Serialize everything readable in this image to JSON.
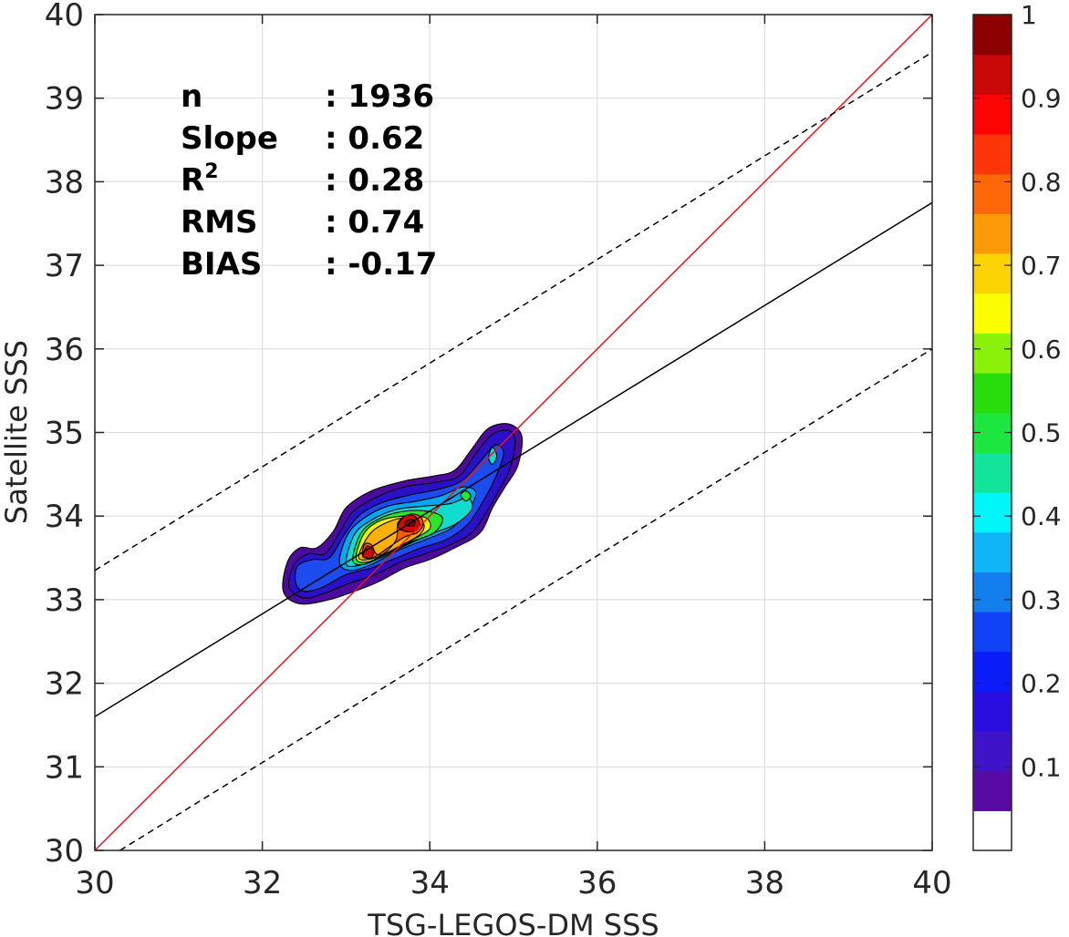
{
  "chart_data": {
    "type": "heatmap",
    "subtype": "density contour scatter",
    "xlabel": "TSG-LEGOS-DM SSS",
    "ylabel": "Satellite SSS",
    "xlim": [
      30,
      40
    ],
    "ylim": [
      30,
      40
    ],
    "xticks": [
      30,
      32,
      34,
      36,
      38,
      40
    ],
    "yticks": [
      30,
      31,
      32,
      33,
      34,
      35,
      36,
      37,
      38,
      39,
      40
    ],
    "grid": true,
    "stats": [
      {
        "label": "n",
        "sep": ":",
        "value": "1936"
      },
      {
        "label": "Slope",
        "sep": ":",
        "value": "0.62"
      },
      {
        "label": "R",
        "sup": "2",
        "sep": ":",
        "value": "0.28"
      },
      {
        "label": "RMS",
        "sep": ":",
        "value": "0.74"
      },
      {
        "label": "BIAS",
        "sep": ":",
        "value": "-0.17"
      }
    ],
    "lines": [
      {
        "role": "identity (1:1)",
        "color": "#e8141c",
        "style": "solid",
        "points": [
          [
            30,
            30
          ],
          [
            40,
            40
          ]
        ]
      },
      {
        "role": "regression fit",
        "color": "#000000",
        "style": "solid",
        "points": [
          [
            30,
            31.6
          ],
          [
            40,
            37.75
          ]
        ]
      },
      {
        "role": "upper envelope",
        "color": "#000000",
        "style": "dashed",
        "points": [
          [
            30,
            33.35
          ],
          [
            40,
            39.55
          ]
        ]
      },
      {
        "role": "lower envelope",
        "color": "#000000",
        "style": "dashed",
        "points": [
          [
            30.3,
            30
          ],
          [
            40,
            36.0
          ]
        ]
      }
    ],
    "density_levels": [
      {
        "level": 0.05,
        "color": "#4d0a9e",
        "shape": [
          [
            32.25,
            33.1
          ],
          [
            32.3,
            33.45
          ],
          [
            32.45,
            33.62
          ],
          [
            32.65,
            33.62
          ],
          [
            32.85,
            33.82
          ],
          [
            33.0,
            34.1
          ],
          [
            33.3,
            34.3
          ],
          [
            33.7,
            34.42
          ],
          [
            34.05,
            34.48
          ],
          [
            34.3,
            34.55
          ],
          [
            34.5,
            34.8
          ],
          [
            34.7,
            35.05
          ],
          [
            34.95,
            35.1
          ],
          [
            35.1,
            34.95
          ],
          [
            35.05,
            34.6
          ],
          [
            34.9,
            34.35
          ],
          [
            34.75,
            34.1
          ],
          [
            34.6,
            33.8
          ],
          [
            34.3,
            33.62
          ],
          [
            34.0,
            33.48
          ],
          [
            33.7,
            33.38
          ],
          [
            33.4,
            33.22
          ],
          [
            33.1,
            33.1
          ],
          [
            32.8,
            33.0
          ],
          [
            32.45,
            32.95
          ]
        ]
      },
      {
        "level": 0.1,
        "color": "#2a10c8",
        "shape": [
          [
            32.32,
            33.15
          ],
          [
            32.38,
            33.42
          ],
          [
            32.55,
            33.55
          ],
          [
            32.75,
            33.55
          ],
          [
            32.92,
            33.8
          ],
          [
            33.08,
            34.05
          ],
          [
            33.35,
            34.22
          ],
          [
            33.7,
            34.35
          ],
          [
            34.05,
            34.4
          ],
          [
            34.35,
            34.48
          ],
          [
            34.55,
            34.75
          ],
          [
            34.75,
            34.98
          ],
          [
            34.95,
            35.02
          ],
          [
            35.02,
            34.88
          ],
          [
            34.95,
            34.55
          ],
          [
            34.82,
            34.3
          ],
          [
            34.68,
            34.05
          ],
          [
            34.5,
            33.8
          ],
          [
            34.25,
            33.66
          ],
          [
            33.95,
            33.55
          ],
          [
            33.65,
            33.45
          ],
          [
            33.35,
            33.3
          ],
          [
            33.05,
            33.2
          ],
          [
            32.75,
            33.08
          ],
          [
            32.5,
            33.02
          ]
        ]
      },
      {
        "level": 0.2,
        "color": "#1c4cf0",
        "shape": [
          [
            32.4,
            33.2
          ],
          [
            32.42,
            33.4
          ],
          [
            32.6,
            33.48
          ],
          [
            32.8,
            33.5
          ],
          [
            32.98,
            33.78
          ],
          [
            33.15,
            34.0
          ],
          [
            33.4,
            34.15
          ],
          [
            33.75,
            34.25
          ],
          [
            34.1,
            34.32
          ],
          [
            34.38,
            34.42
          ],
          [
            34.6,
            34.65
          ],
          [
            34.78,
            34.85
          ],
          [
            34.88,
            34.75
          ],
          [
            34.78,
            34.45
          ],
          [
            34.62,
            34.15
          ],
          [
            34.45,
            33.9
          ],
          [
            34.2,
            33.72
          ],
          [
            33.9,
            33.62
          ],
          [
            33.6,
            33.5
          ],
          [
            33.3,
            33.38
          ],
          [
            33.0,
            33.3
          ],
          [
            32.72,
            33.15
          ],
          [
            32.5,
            33.1
          ]
        ]
      },
      {
        "level": 0.3,
        "color": "#06a6f2",
        "shape": [
          [
            32.92,
            33.45
          ],
          [
            33.02,
            33.78
          ],
          [
            33.22,
            33.98
          ],
          [
            33.5,
            34.12
          ],
          [
            33.85,
            34.18
          ],
          [
            34.15,
            34.25
          ],
          [
            34.4,
            34.35
          ],
          [
            34.55,
            34.28
          ],
          [
            34.45,
            34.05
          ],
          [
            34.25,
            33.85
          ],
          [
            33.95,
            33.72
          ],
          [
            33.6,
            33.58
          ],
          [
            33.3,
            33.42
          ],
          [
            33.05,
            33.35
          ]
        ]
      },
      {
        "level": 0.4,
        "color": "#12dbcf",
        "shape": [
          [
            33.0,
            33.45
          ],
          [
            33.1,
            33.78
          ],
          [
            33.3,
            33.95
          ],
          [
            33.6,
            34.08
          ],
          [
            33.95,
            34.12
          ],
          [
            34.25,
            34.15
          ],
          [
            34.45,
            34.22
          ],
          [
            34.5,
            34.08
          ],
          [
            34.3,
            33.9
          ],
          [
            34.0,
            33.78
          ],
          [
            33.65,
            33.62
          ],
          [
            33.35,
            33.48
          ],
          [
            33.1,
            33.4
          ]
        ]
      },
      {
        "level": 0.5,
        "color": "#28e62c",
        "shape": [
          [
            33.08,
            33.48
          ],
          [
            33.18,
            33.8
          ],
          [
            33.38,
            33.96
          ],
          [
            33.65,
            34.05
          ],
          [
            33.95,
            34.06
          ],
          [
            34.15,
            33.98
          ],
          [
            34.05,
            33.8
          ],
          [
            33.75,
            33.68
          ],
          [
            33.45,
            33.52
          ],
          [
            33.2,
            33.42
          ]
        ]
      },
      {
        "level": 0.6,
        "color": "#f4f400",
        "shape": [
          [
            33.12,
            33.5
          ],
          [
            33.22,
            33.8
          ],
          [
            33.42,
            33.95
          ],
          [
            33.7,
            34.0
          ],
          [
            33.95,
            33.98
          ],
          [
            34.0,
            33.85
          ],
          [
            33.8,
            33.72
          ],
          [
            33.5,
            33.56
          ],
          [
            33.25,
            33.45
          ]
        ]
      },
      {
        "level": 0.7,
        "color": "#fcb10a",
        "shape": [
          [
            33.15,
            33.5
          ],
          [
            33.28,
            33.78
          ],
          [
            33.48,
            33.92
          ],
          [
            33.72,
            33.98
          ],
          [
            33.92,
            33.92
          ],
          [
            33.88,
            33.78
          ],
          [
            33.6,
            33.62
          ],
          [
            33.35,
            33.5
          ]
        ]
      },
      {
        "level": 0.8,
        "color": "#f55a0c",
        "shape": [
          [
            33.2,
            33.52
          ],
          [
            33.22,
            33.66
          ],
          [
            33.3,
            33.66
          ],
          [
            33.36,
            33.55
          ],
          [
            33.45,
            33.55
          ],
          [
            33.6,
            33.72
          ],
          [
            33.62,
            33.92
          ],
          [
            33.75,
            34.02
          ],
          [
            33.88,
            34.0
          ],
          [
            33.92,
            33.9
          ],
          [
            33.85,
            33.8
          ],
          [
            33.7,
            33.75
          ],
          [
            33.5,
            33.62
          ],
          [
            33.32,
            33.5
          ]
        ]
      },
      {
        "level": 0.9,
        "color": "#cd0a0a",
        "shape": [
          [
            33.2,
            33.52
          ],
          [
            33.25,
            33.64
          ],
          [
            33.33,
            33.58
          ],
          [
            33.3,
            33.5
          ],
          [
            33.24,
            33.5
          ]
        ]
      },
      {
        "level": 0.95,
        "color": "#cd0a0a",
        "shape": [
          [
            33.62,
            33.88
          ],
          [
            33.7,
            34.0
          ],
          [
            33.82,
            34.0
          ],
          [
            33.88,
            33.9
          ],
          [
            33.82,
            33.82
          ],
          [
            33.7,
            33.82
          ]
        ]
      },
      {
        "level": 1.0,
        "color": "#8e0000",
        "shape": [
          [
            33.7,
            33.9
          ],
          [
            33.75,
            33.96
          ],
          [
            33.82,
            33.94
          ],
          [
            33.8,
            33.88
          ]
        ]
      },
      {
        "level": 0.5,
        "note": "small secondary peak",
        "color": "#28e62c",
        "shape": [
          [
            34.37,
            34.25
          ],
          [
            34.43,
            34.3
          ],
          [
            34.49,
            34.24
          ],
          [
            34.43,
            34.18
          ]
        ]
      },
      {
        "level": 0.4,
        "note": "small secondary peak",
        "color": "#12dbcf",
        "shape": [
          [
            34.7,
            34.7
          ],
          [
            34.75,
            34.82
          ],
          [
            34.8,
            34.72
          ],
          [
            34.75,
            34.62
          ]
        ]
      }
    ],
    "colorbar": {
      "range": [
        0,
        1
      ],
      "ticks": [
        "0.1",
        "0.2",
        "0.3",
        "0.4",
        "0.5",
        "0.6",
        "0.7",
        "0.8",
        "0.9",
        "1"
      ],
      "bands": [
        "#ffffff",
        "#5a0aa4",
        "#3f14c8",
        "#2a0ee1",
        "#0a1cf8",
        "#1043f5",
        "#137fef",
        "#0fb5f4",
        "#00f6f8",
        "#12e59b",
        "#1ee640",
        "#29dd0d",
        "#8bf00a",
        "#fcfc03",
        "#fdd403",
        "#fb9a07",
        "#fd6708",
        "#fc3608",
        "#fd0404",
        "#cb0808",
        "#8c0000"
      ]
    }
  }
}
